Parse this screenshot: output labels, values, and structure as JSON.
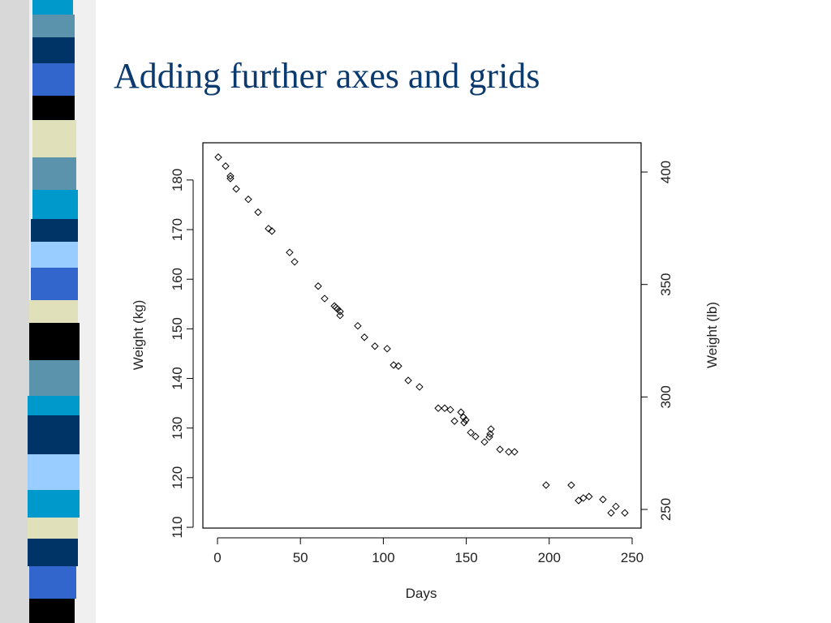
{
  "chart_data": {
    "type": "scatter",
    "title": "Adding further axes and grids",
    "xlabel": "Days",
    "ylabel": "Weight (kg)",
    "y2label": "Weight (lb)",
    "color": "#000000",
    "x": [
      0.5,
      4.9,
      7.8,
      7.8,
      11.3,
      18.6,
      24.5,
      30.8,
      32.8,
      43.5,
      46.5,
      60.7,
      64.6,
      70.5,
      71.4,
      72.4,
      73.9,
      73.9,
      84.6,
      88.6,
      94.9,
      102.3,
      106.2,
      109.1,
      115,
      121.8,
      133.1,
      137,
      140.4,
      142.9,
      146.8,
      148.3,
      149.7,
      148.7,
      152.7,
      155.6,
      161,
      163.9,
      164.4,
      164.9,
      170.3,
      175.6,
      179.1,
      198.1,
      213.3,
      217.7,
      220.6,
      224,
      232.4,
      237.3,
      240.2,
      245.6
    ],
    "values": [
      184.6,
      182.8,
      180.8,
      180.3,
      178.2,
      176.1,
      173.5,
      170.2,
      169.7,
      165.4,
      163.5,
      158.6,
      156.1,
      154.6,
      154.3,
      154.0,
      153.5,
      152.7,
      150.6,
      148.3,
      146.5,
      146.0,
      142.7,
      142.5,
      139.6,
      138.3,
      134.0,
      134.0,
      133.7,
      131.4,
      133.2,
      132.2,
      131.6,
      131.1,
      129.1,
      128.3,
      127.2,
      128.2,
      128.8,
      129.8,
      125.7,
      125.2,
      125.2,
      118.5,
      118.5,
      115.4,
      115.9,
      116.2,
      115.6,
      112.9,
      114.2,
      112.9
    ],
    "xlim": [
      -8.8,
      255.4
    ],
    "xticks": [
      0,
      50,
      100,
      150,
      200,
      250
    ],
    "ylim": [
      109.84,
      187.5
    ],
    "yticks": [
      110,
      120,
      130,
      140,
      150,
      160,
      170,
      180
    ],
    "y2lim": [
      241.7,
      413.0
    ],
    "y2ticks": [
      250,
      300,
      350,
      400
    ]
  }
}
